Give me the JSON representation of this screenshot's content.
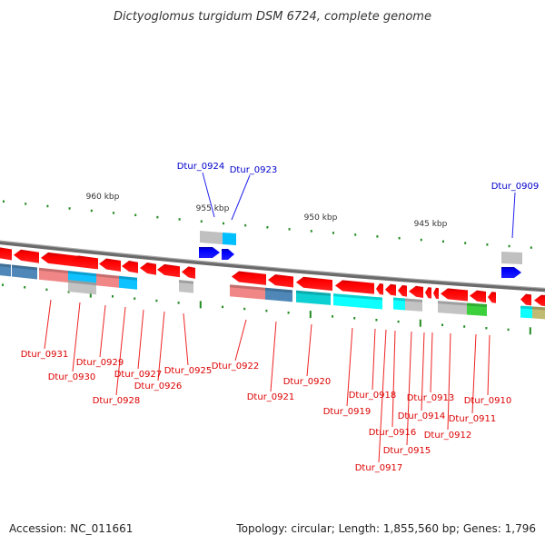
{
  "title": "Dictyoglomus turgidum DSM 6724, complete genome",
  "footer": {
    "accession": "Accession: NC_011661",
    "summary": "Topology: circular; Length: 1,855,560 bp; Genes: 1,796"
  },
  "colors": {
    "backbone": "#808080",
    "reverse_gene": "#ff0000",
    "forward_gene": "#0000ff",
    "tick": "#228b22",
    "label_reverse": "#dd0000",
    "label_forward": "#0000cc",
    "cog_steelblue": "#4682b4",
    "cog_lightcoral": "#f08080",
    "cog_deepskyblue": "#00bfff",
    "cog_gray": "#c0c0c0",
    "cog_darkturquoise": "#00ced1",
    "cog_cyan": "#00ffff",
    "cog_green": "#32cd32",
    "cog_khaki": "#bdb76b"
  },
  "scale": {
    "unit": "kbp",
    "labels": [
      "960 kbp",
      "955 kbp",
      "950 kbp",
      "945 kbp"
    ]
  },
  "forward_genes": [
    {
      "label": "Dtur_0924"
    },
    {
      "label": "Dtur_0923"
    },
    {
      "label": "Dtur_0909"
    }
  ],
  "reverse_genes": [
    {
      "label": "Dtur_0931"
    },
    {
      "label": "Dtur_0930"
    },
    {
      "label": "Dtur_0929"
    },
    {
      "label": "Dtur_0928"
    },
    {
      "label": "Dtur_0927"
    },
    {
      "label": "Dtur_0926"
    },
    {
      "label": "Dtur_0925"
    },
    {
      "label": "Dtur_0922"
    },
    {
      "label": "Dtur_0921"
    },
    {
      "label": "Dtur_0920"
    },
    {
      "label": "Dtur_0919"
    },
    {
      "label": "Dtur_0918"
    },
    {
      "label": "Dtur_0917"
    },
    {
      "label": "Dtur_0916"
    },
    {
      "label": "Dtur_0915"
    },
    {
      "label": "Dtur_0914"
    },
    {
      "label": "Dtur_0913"
    },
    {
      "label": "Dtur_0912"
    },
    {
      "label": "Dtur_0911"
    },
    {
      "label": "Dtur_0910"
    }
  ]
}
